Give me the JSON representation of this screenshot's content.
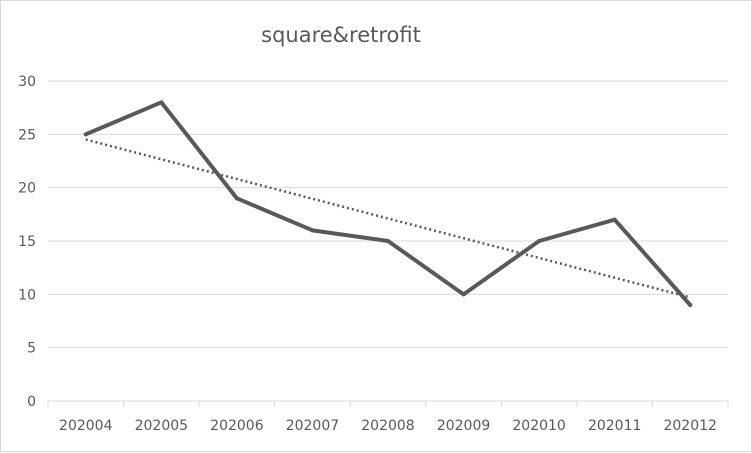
{
  "chart_data": {
    "type": "line",
    "title": "square&retrofit",
    "xlabel": "",
    "ylabel": "",
    "categories": [
      "202004",
      "202005",
      "202006",
      "202007",
      "202008",
      "202009",
      "202010",
      "202011",
      "202012"
    ],
    "series": [
      {
        "values": [
          25,
          28,
          19,
          16,
          15,
          10,
          15,
          17,
          9
        ],
        "color": "#595959"
      }
    ],
    "trendline": {
      "type": "linear",
      "style": "dotted",
      "color": "#595959"
    },
    "ylim": [
      0,
      30
    ],
    "yticks": [
      0,
      5,
      10,
      15,
      20,
      25,
      30
    ],
    "grid": true,
    "legend": "none"
  }
}
